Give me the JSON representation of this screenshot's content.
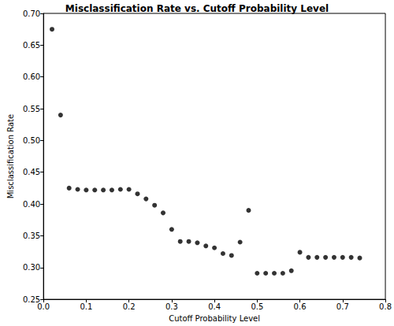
{
  "chart_data": {
    "type": "scatter",
    "title": "Misclassification Rate vs. Cutoff Probability Level",
    "x_label": "Cutoff Probability Level",
    "y_label": "Misclassification Rate",
    "x": [
      0.02,
      0.04,
      0.06,
      0.08,
      0.1,
      0.12,
      0.14,
      0.16,
      0.18,
      0.2,
      0.22,
      0.24,
      0.26,
      0.28,
      0.3,
      0.32,
      0.34,
      0.36,
      0.38,
      0.4,
      0.42,
      0.44,
      0.46,
      0.48,
      0.5,
      0.52,
      0.54,
      0.56,
      0.58,
      0.6,
      0.62,
      0.64,
      0.66,
      0.68,
      0.7,
      0.72,
      0.74
    ],
    "values": [
      0.675,
      0.54,
      0.425,
      0.423,
      0.422,
      0.422,
      0.422,
      0.422,
      0.423,
      0.423,
      0.416,
      0.408,
      0.398,
      0.386,
      0.36,
      0.341,
      0.341,
      0.339,
      0.334,
      0.331,
      0.322,
      0.319,
      0.34,
      0.39,
      0.291,
      0.291,
      0.291,
      0.291,
      0.295,
      0.324,
      0.316,
      0.316,
      0.316,
      0.316,
      0.316,
      0.316,
      0.315
    ],
    "color": "#000000",
    "marker": "circle",
    "xlim": [
      0,
      0.8
    ],
    "xticks": [
      {
        "value": 0,
        "label": "0.0"
      },
      0.1,
      0.2,
      0.3,
      0.4,
      0.5,
      0.6,
      0.7,
      0.8
    ],
    "ylim": [
      0.25,
      0.7
    ],
    "yticks": [
      0.25,
      {
        "value": 0.3,
        "label": "0.30"
      },
      0.35,
      {
        "value": 0.4,
        "label": "0.40"
      },
      0.45,
      {
        "value": 0.5,
        "label": "0.50"
      },
      0.55,
      {
        "value": 0.6,
        "label": "0.60"
      },
      0.65,
      {
        "value": 0.7,
        "label": "0.70"
      }
    ],
    "grid": false
  }
}
